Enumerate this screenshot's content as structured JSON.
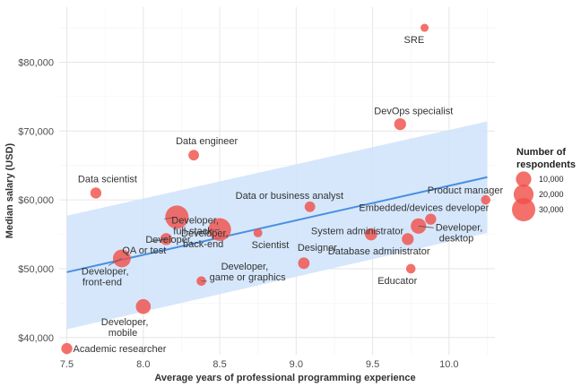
{
  "chart_data": {
    "type": "scatter",
    "title": "",
    "xlabel": "Average years of professional programming experience",
    "ylabel": "Median salary (USD)",
    "xlim": [
      7.45,
      10.3
    ],
    "ylim": [
      37500,
      88000
    ],
    "x_ticks": [
      7.5,
      8.0,
      8.5,
      9.0,
      9.5,
      10.0
    ],
    "x_tick_labels": [
      "7.5",
      "8.0",
      "8.5",
      "9.0",
      "9.5",
      "10.0"
    ],
    "y_ticks": [
      40000,
      50000,
      60000,
      70000,
      80000
    ],
    "y_tick_labels": [
      "$40,000",
      "$50,000",
      "$60,000",
      "$70,000",
      "$80,000"
    ],
    "colors": {
      "points": "#f0504a",
      "trend": "#4a8fe0",
      "band": "#cfe3fb",
      "grid": "#ececec"
    },
    "points": [
      {
        "label": "SRE",
        "x": 9.84,
        "y": 85000,
        "respondents": 1000
      },
      {
        "label": "DevOps specialist",
        "x": 9.68,
        "y": 71000,
        "respondents": 4500
      },
      {
        "label": "Data engineer",
        "x": 8.33,
        "y": 66500,
        "respondents": 3000
      },
      {
        "label": "Data scientist",
        "x": 7.69,
        "y": 61000,
        "respondents": 3500
      },
      {
        "label": "Product manager",
        "x": 10.24,
        "y": 60000,
        "respondents": 2000
      },
      {
        "label": "Data or business analyst",
        "x": 9.09,
        "y": 59000,
        "respondents": 3000
      },
      {
        "label": "Developer, full-stack",
        "x": 8.22,
        "y": 57500,
        "respondents": 30000
      },
      {
        "label": "Embedded/devices developer",
        "x": 9.88,
        "y": 57200,
        "respondents": 3500
      },
      {
        "label": "Developer, desktop",
        "x": 9.8,
        "y": 56200,
        "respondents": 10000
      },
      {
        "label": "Developer, back-end",
        "x": 8.5,
        "y": 55700,
        "respondents": 28000
      },
      {
        "label": "Scientist",
        "x": 8.75,
        "y": 55200,
        "respondents": 1500
      },
      {
        "label": "System administrator",
        "x": 9.49,
        "y": 55000,
        "respondents": 5000
      },
      {
        "label": "Database administrator",
        "x": 9.73,
        "y": 54300,
        "respondents": 4500
      },
      {
        "label": "Developer, QA or test",
        "x": 8.15,
        "y": 54300,
        "respondents": 4500
      },
      {
        "label": "Developer, front-end",
        "x": 7.86,
        "y": 51500,
        "respondents": 15000
      },
      {
        "label": "Designer",
        "x": 9.05,
        "y": 50800,
        "respondents": 4000
      },
      {
        "label": "Educator",
        "x": 9.75,
        "y": 50000,
        "respondents": 2000
      },
      {
        "label": "Developer, game or graphics",
        "x": 8.38,
        "y": 48200,
        "respondents": 2000
      },
      {
        "label": "Developer, mobile",
        "x": 8.0,
        "y": 44500,
        "respondents": 9000
      },
      {
        "label": "Academic researcher",
        "x": 7.5,
        "y": 38400,
        "respondents": 3500
      }
    ],
    "trend_line": {
      "x": [
        7.5,
        10.25
      ],
      "y": [
        49500,
        63300
      ]
    },
    "confidence_band": {
      "x": [
        7.5,
        10.25
      ],
      "upper": [
        57700,
        71400
      ],
      "lower": [
        41200,
        55200
      ]
    },
    "legend": {
      "title_lines": [
        "Number of",
        "respondents"
      ],
      "entries": [
        {
          "label": "10,000",
          "value": 10000
        },
        {
          "label": "20,000",
          "value": 20000
        },
        {
          "label": "30,000",
          "value": 30000
        }
      ],
      "position": "right"
    }
  }
}
